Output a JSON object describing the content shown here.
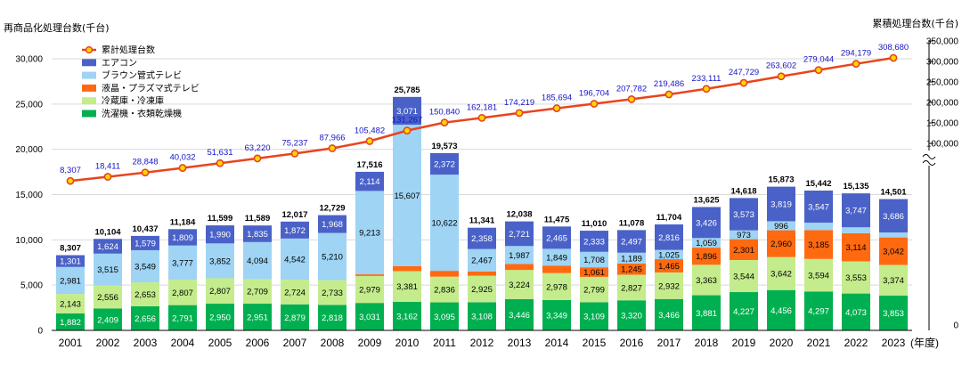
{
  "chart_data": {
    "type": "bar",
    "left_axis_title": "再商品化処理台数(千台)",
    "right_axis_title": "累積処理台数(千台)",
    "year_suffix": "(年度)",
    "categories": [
      "2001",
      "2002",
      "2003",
      "2004",
      "2005",
      "2006",
      "2007",
      "2008",
      "2009",
      "2010",
      "2011",
      "2012",
      "2013",
      "2014",
      "2015",
      "2016",
      "2017",
      "2018",
      "2019",
      "2020",
      "2021",
      "2022",
      "2023"
    ],
    "left_ylim": [
      0,
      30000
    ],
    "left_ticks": [
      "0",
      "5,000",
      "10,000",
      "15,000",
      "20,000",
      "25,000",
      "30,000"
    ],
    "right_ticks": [
      "0",
      "100,000",
      "150,000",
      "200,000",
      "250,000",
      "300,000",
      "350,000"
    ],
    "series": [
      {
        "name": "洗濯機・衣類乾燥機",
        "color": "#00b050",
        "label_color": "#ffffff",
        "values": [
          1882,
          2409,
          2656,
          2791,
          2950,
          2951,
          2879,
          2818,
          3031,
          3162,
          3095,
          3108,
          3446,
          3349,
          3109,
          3320,
          3466,
          3881,
          4227,
          4456,
          4297,
          4073,
          3853
        ]
      },
      {
        "name": "冷蔵庫・冷凍庫",
        "color": "#c4ec8c",
        "label_color": "#000000",
        "values": [
          2143,
          2556,
          2653,
          2807,
          2807,
          2709,
          2724,
          2733,
          2979,
          3381,
          2836,
          2925,
          3224,
          2978,
          2799,
          2827,
          2932,
          3363,
          3544,
          3642,
          3594,
          3553,
          3374
        ]
      },
      {
        "name": "液晶・プラズマ式テレビ",
        "color": "#ff6a10",
        "label_color": "#000000",
        "values": [
          null,
          null,
          null,
          null,
          null,
          null,
          null,
          null,
          179,
          564,
          648,
          483,
          660,
          834,
          1061,
          1245,
          1465,
          1896,
          2301,
          2960,
          3185,
          3114,
          3042
        ]
      },
      {
        "name": "ブラウン管式テレビ",
        "color": "#9fd4f4",
        "label_color": "#000000",
        "values": [
          2981,
          3515,
          3549,
          3777,
          3852,
          4094,
          4542,
          5210,
          9213,
          15607,
          10622,
          2467,
          1987,
          1849,
          1708,
          1189,
          1025,
          1059,
          973,
          996,
          819,
          648,
          546
        ]
      },
      {
        "name": "エアコン",
        "color": "#4a62c8",
        "label_color": "#ffffff",
        "values": [
          1301,
          1624,
          1579,
          1809,
          1990,
          1835,
          1872,
          1968,
          2114,
          3071,
          2372,
          2358,
          2721,
          2465,
          2333,
          2497,
          2816,
          3426,
          3573,
          3819,
          3547,
          3747,
          3686
        ]
      }
    ],
    "totals": [
      "8,307",
      "10,104",
      "10,437",
      "11,184",
      "11,599",
      "11,589",
      "12,017",
      "12,729",
      "17,516",
      "25,785",
      "19,573",
      "11,341",
      "12,038",
      "11,475",
      "11,010",
      "11,078",
      "11,704",
      "13,625",
      "14,618",
      "15,873",
      "15,442",
      "15,135",
      "14,501"
    ],
    "cumulative": {
      "name": "累計処理台数",
      "color": "#e8441e",
      "marker_color": "#ffd700",
      "values": [
        8307,
        18411,
        28848,
        40032,
        51631,
        63220,
        75237,
        87966,
        105482,
        131267,
        150840,
        162181,
        174219,
        185694,
        196704,
        207782,
        219486,
        233111,
        247729,
        263602,
        279044,
        294179,
        308680
      ]
    },
    "legend_placement": "top-left"
  }
}
